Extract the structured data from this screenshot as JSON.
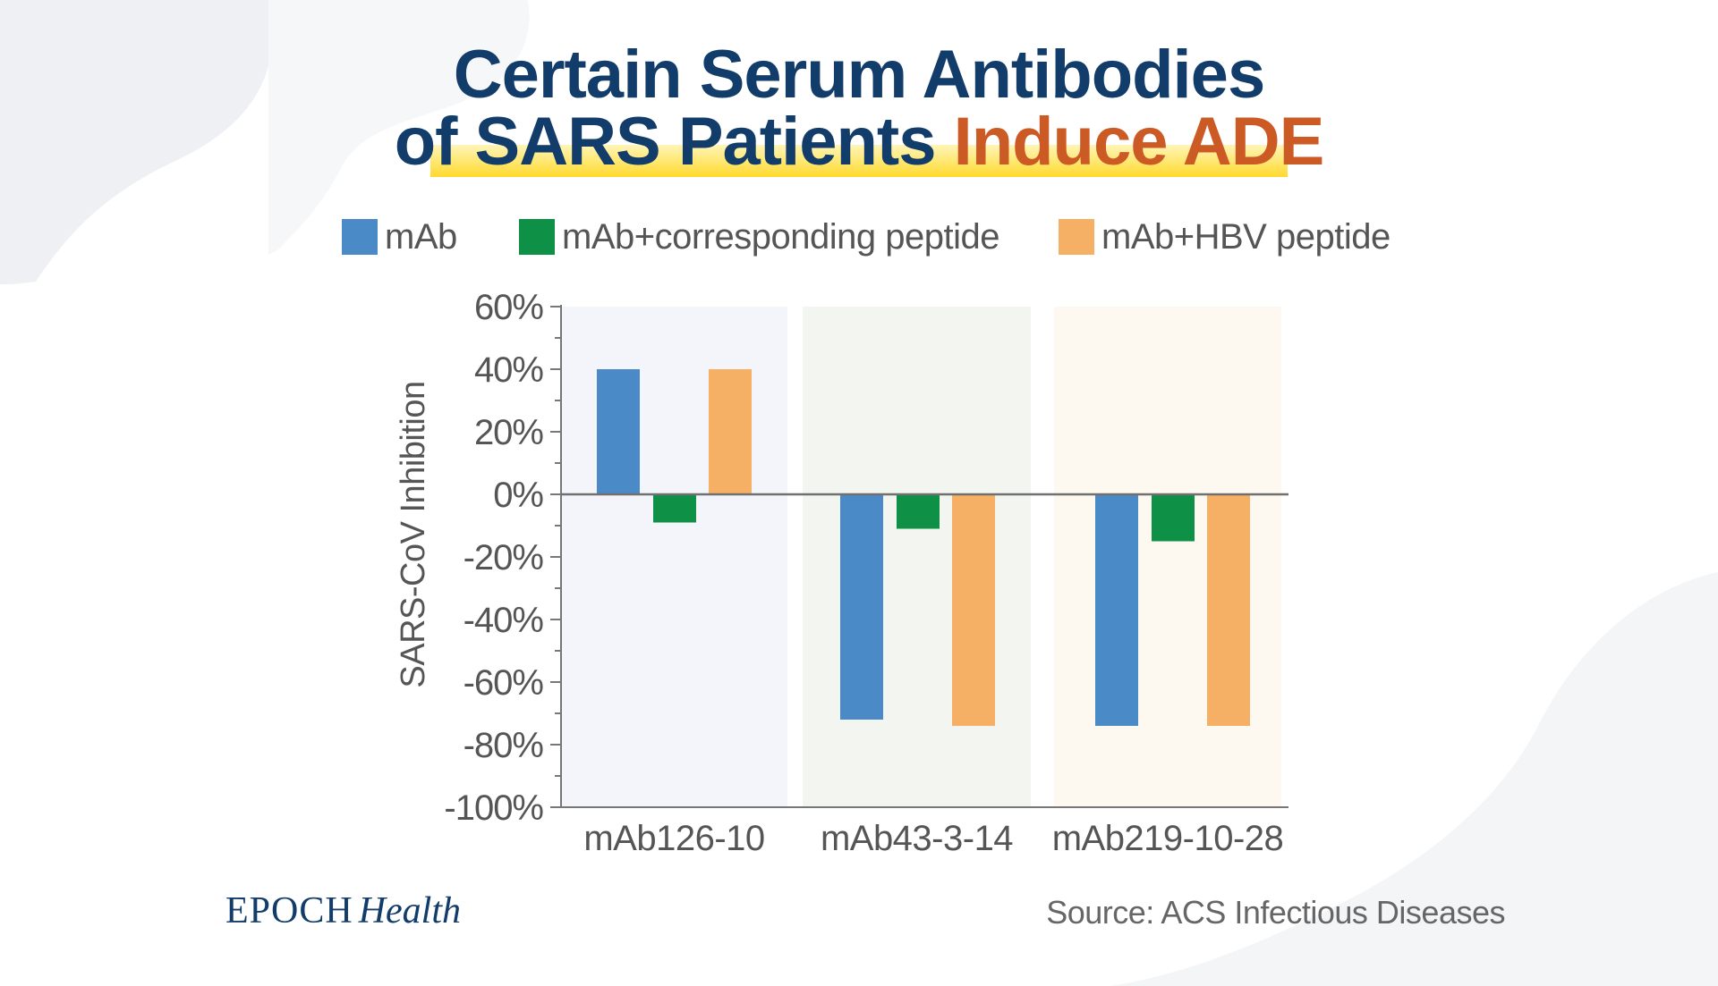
{
  "title": {
    "line1": "Certain Serum Antibodies",
    "line2_prefix": "of SARS Patients ",
    "line2_accent": "Induce ADE"
  },
  "colors": {
    "title": "#123c69",
    "accent": "#cc5a25",
    "highlight": "#ffd92c"
  },
  "chart_data": {
    "type": "bar",
    "title": "",
    "xlabel": "",
    "ylabel": "SARS-CoV Inhibition",
    "categories": [
      "mAb126-10",
      "mAb43-3-14",
      "mAb219-10-28"
    ],
    "series": [
      {
        "name": "mAb",
        "color": "#4a8ac6",
        "values": [
          40,
          -72,
          -74
        ]
      },
      {
        "name": "mAb+corresponding peptide",
        "color": "#0e9146",
        "values": [
          -9,
          -11,
          -15
        ]
      },
      {
        "name": "mAb+HBV peptide",
        "color": "#f6b065",
        "values": [
          40,
          -74,
          -74
        ]
      }
    ],
    "ylim": [
      -100,
      60
    ],
    "yticks": [
      60,
      40,
      20,
      0,
      -20,
      -40,
      -60,
      -80,
      -100
    ],
    "ytick_labels": [
      "60%",
      "40%",
      "20%",
      "0%",
      "-20%",
      "-40%",
      "-60%",
      "-80%",
      "-100%"
    ],
    "category_backgrounds": [
      "#f3f5fb",
      "#f3f6f0",
      "#fdf8f0"
    ],
    "legend_position": "top"
  },
  "footer": {
    "brand_part1": "EPOCH",
    "brand_part2": "Health",
    "source": "Source: ACS Infectious Diseases"
  }
}
